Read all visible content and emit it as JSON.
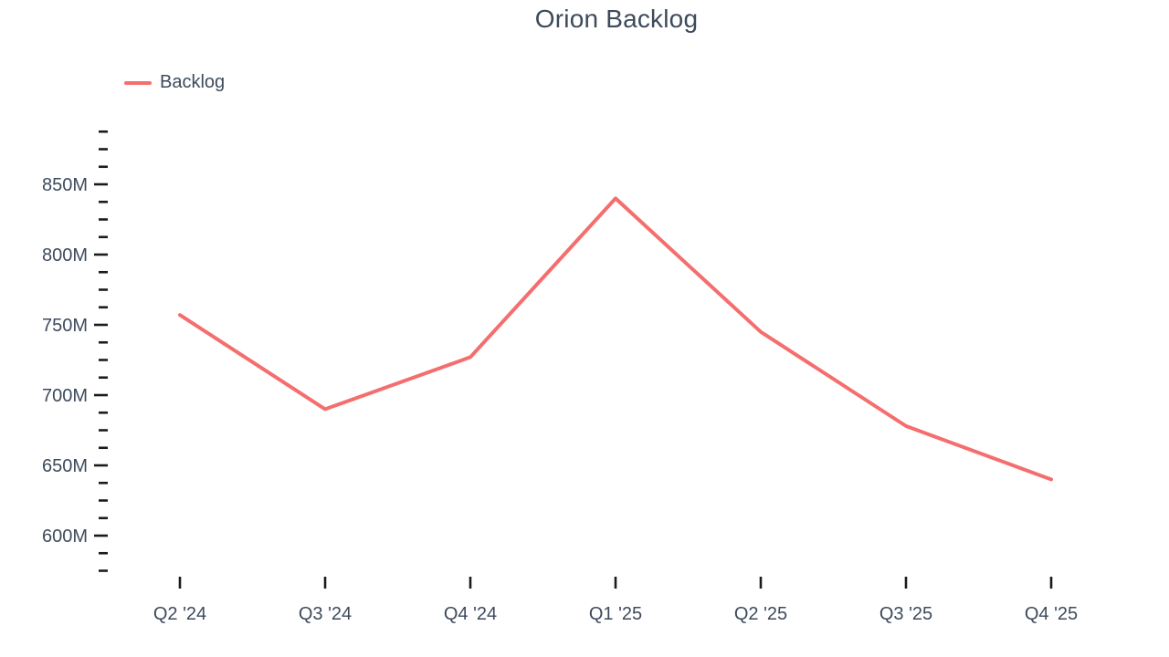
{
  "chart": {
    "title": "Orion Backlog",
    "legend": {
      "items": [
        {
          "label": "Backlog",
          "color": "#F56E6E"
        }
      ]
    }
  },
  "colors": {
    "line": "#F56E6E",
    "text": "#3D4A5C",
    "tick": "#1B1B1B",
    "background": "#FFFFFF"
  },
  "chart_data": {
    "type": "line",
    "title": "Orion Backlog",
    "categories": [
      "Q2 '24",
      "Q3 '24",
      "Q4 '24",
      "Q1 '25",
      "Q2 '25",
      "Q3 '25",
      "Q4 '25"
    ],
    "series": [
      {
        "name": "Backlog",
        "color": "#F56E6E",
        "values": [
          757,
          690,
          727,
          840,
          745,
          678,
          640
        ]
      }
    ],
    "value_unit": "millions",
    "xlabel": "",
    "ylabel": "",
    "grid": false,
    "legend_position": "top-left",
    "y_axis": {
      "major_ticks": [
        600,
        650,
        700,
        750,
        800,
        850
      ],
      "major_tick_labels": [
        "600M",
        "650M",
        "700M",
        "750M",
        "800M",
        "850M"
      ],
      "unit_suffix": "M",
      "minor_step": 12.5,
      "range_min": 575,
      "range_max": 887.5
    }
  }
}
